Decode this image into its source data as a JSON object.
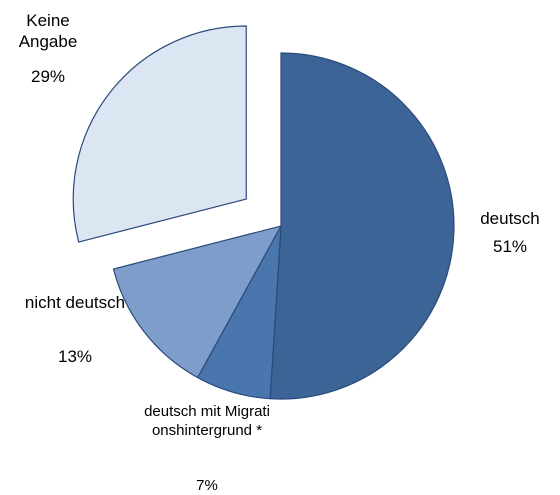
{
  "chart_data": {
    "type": "pie",
    "categories": [
      "deutsch",
      "deutsch mit Migrationshintergrund *",
      "nicht deutsch",
      "Keine Angabe"
    ],
    "values": [
      51,
      7,
      13,
      29
    ],
    "value_labels": [
      "51%",
      "7%",
      "13%",
      "29%"
    ],
    "colors": [
      "#3d6496",
      "#4a76ae",
      "#7f9dcb",
      "#dce6f2"
    ],
    "exploded": "Keine Angabe"
  }
}
